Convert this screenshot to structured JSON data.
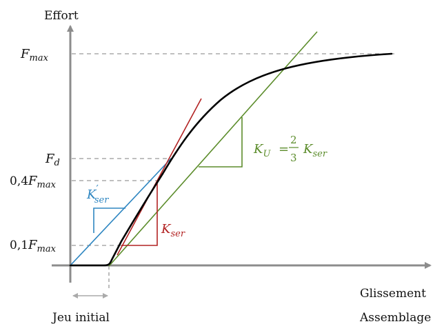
{
  "axes": {
    "y_label": "Effort",
    "x_label_line1": "Glissement",
    "x_label_line2": "Assemblage"
  },
  "y_ticks": {
    "fmax_base": "F",
    "fmax_sub": "max",
    "fd_base": "F",
    "fd_sub": "d",
    "f04_prefix": "0,4",
    "f04_base": "F",
    "f04_sub": "max",
    "f01_prefix": "0,1",
    "f01_base": "F",
    "f01_sub": "max"
  },
  "annotations": {
    "jeu_initial": "Jeu initial",
    "kser_prime_base": "K",
    "kser_prime_prime": "′",
    "kser_prime_sub": "ser",
    "kser_base": "K",
    "kser_sub": "ser",
    "ku_base": "K",
    "ku_sub": "U",
    "ku_equals": "=",
    "ku_num": "2",
    "ku_den": "3",
    "ku_rhs_base": "K",
    "ku_rhs_sub": "ser"
  },
  "colors": {
    "axis": "#8c8c8c",
    "guide": "#999999",
    "curve": "#000000",
    "kser_prime": "#2e86c1",
    "kser": "#b22222",
    "ku": "#5b8c2a"
  }
}
